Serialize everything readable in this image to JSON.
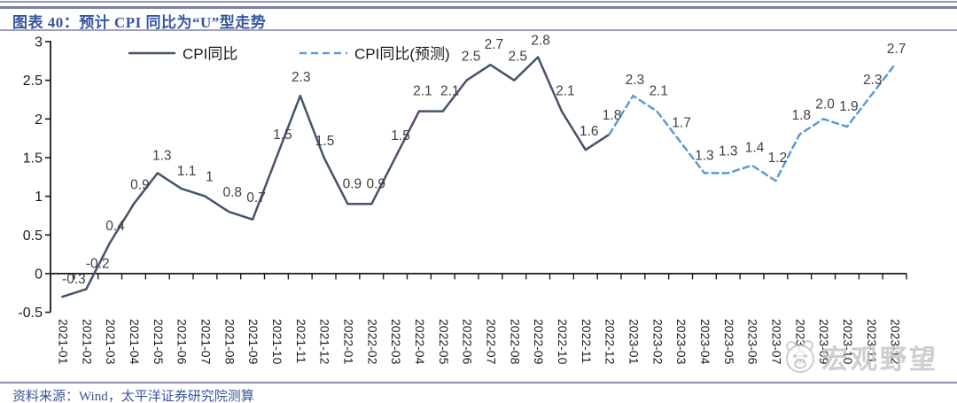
{
  "header": {
    "title": "图表 40：预计 CPI 同比为“U”型走势"
  },
  "footer": {
    "source": "资料来源：Wind，太平洋证券研究院测算"
  },
  "watermark": {
    "text": "宏观野望",
    "icon": "panda-face-icon"
  },
  "colors": {
    "actual_line": "#44546A",
    "forecast_line": "#5B9BD5",
    "axis": "#1a1a1a",
    "data_label": "#404040",
    "title_blue": "#37559E",
    "rule_purple": "#8B8DB2"
  },
  "chart_data": {
    "type": "line",
    "title": "预计CPI同比为“U”型走势",
    "xlabel": "",
    "ylabel": "",
    "ylim": [
      -0.5,
      3
    ],
    "ytick_values": [
      3,
      2.5,
      2,
      1.5,
      1,
      0.5,
      0,
      -0.5
    ],
    "ytick_labels": [
      "3",
      "2.5",
      "2",
      "1.5",
      "1",
      "0.5",
      "0",
      "-0.5"
    ],
    "grid": false,
    "legend_position": "top",
    "categories": [
      "2021-01",
      "2021-02",
      "2021-03",
      "2021-04",
      "2021-05",
      "2021-06",
      "2021-07",
      "2021-08",
      "2021-09",
      "2021-10",
      "2021-11",
      "2021-12",
      "2022-01",
      "2022-02",
      "2022-03",
      "2022-04",
      "2022-05",
      "2022-06",
      "2022-07",
      "2022-08",
      "2022-09",
      "2022-10",
      "2022-11",
      "2022-12",
      "2023-01",
      "2023-02",
      "2023-03",
      "2023-04",
      "2023-05",
      "2023-06",
      "2023-07",
      "2023-08",
      "2023-09",
      "2023-10",
      "2023-11",
      "2023-12"
    ],
    "series": [
      {
        "name": "CPI同比",
        "style": "solid",
        "color": "#44546A",
        "values": [
          -0.3,
          -0.2,
          0.4,
          0.9,
          1.3,
          1.1,
          1.0,
          0.8,
          0.7,
          1.5,
          2.3,
          1.5,
          0.9,
          0.9,
          1.5,
          2.1,
          2.1,
          2.5,
          2.7,
          2.5,
          2.8,
          2.1,
          1.6,
          1.8,
          null,
          null,
          null,
          null,
          null,
          null,
          null,
          null,
          null,
          null,
          null,
          null
        ]
      },
      {
        "name": "CPI同比(预测)",
        "style": "dashed",
        "color": "#5B9BD5",
        "values": [
          null,
          null,
          null,
          null,
          null,
          null,
          null,
          null,
          null,
          null,
          null,
          null,
          null,
          null,
          null,
          null,
          null,
          null,
          null,
          null,
          null,
          null,
          null,
          1.8,
          2.3,
          2.1,
          1.7,
          1.3,
          1.3,
          1.4,
          1.2,
          1.8,
          2.0,
          1.9,
          2.3,
          2.7
        ]
      }
    ],
    "point_labels": [
      "-0.3",
      "-0.2",
      "0.4",
      "0.9",
      "1.3",
      "1.1",
      "1",
      "0.8",
      "0.7",
      "1.5",
      "2.3",
      "1.5",
      "0.9",
      "0.9",
      "1.5",
      "2.1",
      "2.1",
      "2.5",
      "2.7",
      "2.5",
      "2.8",
      "2.1",
      "1.6",
      "1.8",
      "2.3",
      "2.1",
      "1.7",
      "1.3",
      "1.3",
      "1.4",
      "1.2",
      "1.8",
      "2.0",
      "1.9",
      "2.3",
      "2.7"
    ]
  }
}
